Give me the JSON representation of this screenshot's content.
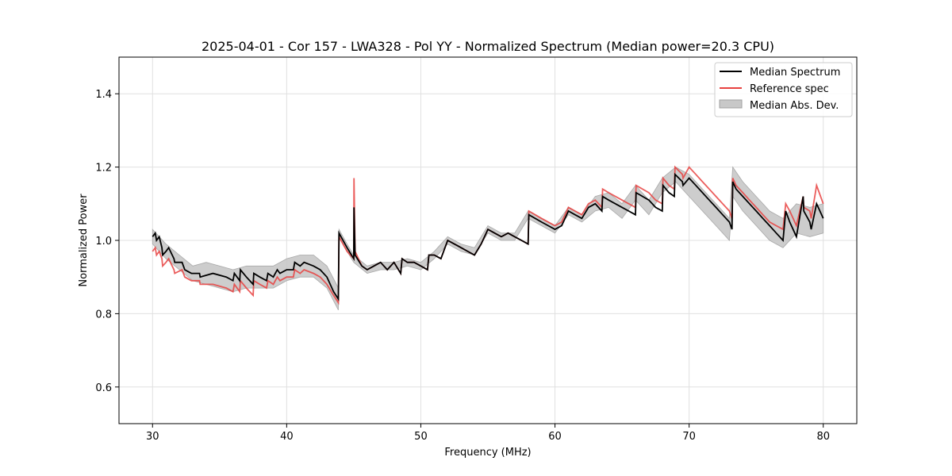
{
  "chart_data": {
    "type": "line",
    "title": "2025-04-01 - Cor 157 - LWA328 - Pol YY - Normalized Spectrum (Median power=20.3 CPU)",
    "xlabel": "Frequency (MHz)",
    "ylabel": "Normalized Power",
    "xlim": [
      27.5,
      82.5
    ],
    "ylim": [
      0.5,
      1.5
    ],
    "xticks": [
      30,
      40,
      50,
      60,
      70,
      80
    ],
    "yticks": [
      0.6,
      0.8,
      1.0,
      1.2,
      1.4
    ],
    "xtick_labels": [
      "30",
      "40",
      "50",
      "60",
      "70",
      "80"
    ],
    "ytick_labels": [
      "0.6",
      "0.8",
      "1.0",
      "1.2",
      "1.4"
    ],
    "grid": true,
    "legend_position": "top-right",
    "legend": [
      "Median Spectrum",
      "Reference spec",
      "Median Abs. Dev."
    ],
    "series": [
      {
        "name": "Median Spectrum",
        "color": "#000000",
        "x": [
          30.0,
          30.2,
          30.3,
          30.5,
          30.7,
          30.75,
          31.0,
          31.2,
          31.6,
          31.65,
          32.2,
          32.4,
          32.9,
          33.5,
          33.55,
          34.5,
          35.5,
          36.0,
          36.1,
          36.5,
          36.55,
          37.0,
          37.5,
          37.55,
          38.0,
          38.5,
          38.6,
          39.0,
          39.3,
          39.5,
          40.0,
          40.5,
          40.6,
          41.0,
          41.3,
          42.0,
          42.5,
          43.0,
          43.5,
          43.85,
          43.9,
          44.5,
          45.0,
          45.02,
          45.1,
          45.6,
          46.0,
          46.5,
          47.0,
          47.5,
          48.0,
          48.5,
          48.6,
          49.0,
          49.5,
          50.0,
          50.5,
          50.6,
          51.0,
          51.5,
          52.0,
          52.5,
          53.0,
          53.5,
          54.0,
          54.5,
          55.0,
          55.5,
          56.0,
          56.5,
          57.0,
          57.5,
          58.0,
          58.05,
          59.0,
          59.5,
          60.0,
          60.5,
          61.0,
          61.5,
          62.0,
          62.5,
          63.0,
          63.5,
          63.55,
          64.0,
          65.0,
          65.5,
          66.0,
          66.05,
          67.0,
          67.5,
          68.0,
          68.05,
          68.5,
          68.9,
          68.95,
          69.5,
          69.55,
          70.0,
          70.5,
          71.0,
          71.5,
          72.0,
          72.5,
          73.0,
          73.2,
          73.25,
          73.5,
          74.0,
          74.5,
          75.0,
          75.5,
          76.0,
          76.5,
          77.0,
          77.2,
          77.5,
          78.0,
          78.5,
          78.55,
          79.0,
          79.1,
          79.5,
          80.0
        ],
        "values": [
          1.01,
          1.02,
          1.0,
          1.01,
          0.98,
          0.96,
          0.97,
          0.98,
          0.95,
          0.94,
          0.94,
          0.92,
          0.91,
          0.91,
          0.9,
          0.91,
          0.9,
          0.89,
          0.91,
          0.89,
          0.92,
          0.9,
          0.88,
          0.91,
          0.9,
          0.89,
          0.91,
          0.9,
          0.92,
          0.91,
          0.92,
          0.92,
          0.94,
          0.93,
          0.94,
          0.93,
          0.92,
          0.9,
          0.86,
          0.84,
          1.02,
          0.98,
          0.95,
          1.09,
          0.96,
          0.93,
          0.92,
          0.93,
          0.94,
          0.92,
          0.94,
          0.91,
          0.95,
          0.94,
          0.94,
          0.93,
          0.92,
          0.96,
          0.96,
          0.95,
          1.0,
          0.99,
          0.98,
          0.97,
          0.96,
          0.99,
          1.03,
          1.02,
          1.01,
          1.02,
          1.01,
          1.0,
          0.99,
          1.07,
          1.05,
          1.04,
          1.03,
          1.04,
          1.08,
          1.07,
          1.06,
          1.09,
          1.1,
          1.08,
          1.12,
          1.11,
          1.09,
          1.08,
          1.07,
          1.13,
          1.11,
          1.09,
          1.08,
          1.15,
          1.13,
          1.12,
          1.18,
          1.16,
          1.15,
          1.17,
          1.15,
          1.13,
          1.11,
          1.09,
          1.07,
          1.05,
          1.03,
          1.16,
          1.14,
          1.12,
          1.1,
          1.08,
          1.06,
          1.04,
          1.02,
          1.0,
          1.08,
          1.05,
          1.01,
          1.12,
          1.08,
          1.05,
          1.03,
          1.1,
          1.06
        ]
      },
      {
        "name": "Reference spec",
        "color": "#e8413f",
        "x": [
          30.0,
          30.2,
          30.3,
          30.5,
          30.7,
          30.75,
          31.0,
          31.2,
          31.6,
          31.65,
          32.2,
          32.4,
          32.9,
          33.5,
          33.55,
          34.5,
          35.5,
          36.0,
          36.1,
          36.5,
          36.55,
          37.0,
          37.5,
          37.55,
          38.0,
          38.5,
          38.6,
          39.0,
          39.3,
          39.5,
          40.0,
          40.5,
          40.6,
          41.0,
          41.3,
          42.0,
          42.5,
          43.0,
          43.5,
          43.85,
          43.9,
          44.5,
          45.0,
          45.02,
          45.1,
          45.6,
          46.0,
          46.5,
          47.0,
          47.5,
          48.0,
          48.5,
          48.6,
          49.0,
          49.5,
          50.0,
          50.5,
          50.6,
          51.0,
          51.5,
          52.0,
          52.5,
          53.0,
          53.5,
          54.0,
          54.5,
          55.0,
          55.5,
          56.0,
          56.5,
          57.0,
          57.5,
          58.0,
          58.05,
          59.0,
          59.5,
          60.0,
          60.5,
          61.0,
          61.5,
          62.0,
          62.5,
          63.0,
          63.5,
          63.55,
          64.0,
          65.0,
          65.5,
          66.0,
          66.05,
          67.0,
          67.5,
          68.0,
          68.05,
          68.5,
          68.9,
          68.95,
          69.5,
          69.55,
          70.0,
          70.5,
          71.0,
          71.5,
          72.0,
          72.5,
          73.0,
          73.2,
          73.25,
          73.5,
          74.0,
          74.5,
          75.0,
          75.5,
          76.0,
          76.5,
          77.0,
          77.2,
          77.5,
          78.0,
          78.5,
          78.55,
          79.0,
          79.1,
          79.5,
          80.0
        ],
        "values": [
          0.97,
          0.98,
          0.96,
          0.97,
          0.95,
          0.93,
          0.94,
          0.95,
          0.92,
          0.91,
          0.92,
          0.9,
          0.89,
          0.89,
          0.88,
          0.88,
          0.87,
          0.86,
          0.88,
          0.86,
          0.89,
          0.87,
          0.85,
          0.89,
          0.88,
          0.87,
          0.89,
          0.88,
          0.9,
          0.89,
          0.9,
          0.9,
          0.92,
          0.91,
          0.92,
          0.91,
          0.9,
          0.88,
          0.85,
          0.83,
          1.01,
          0.97,
          0.95,
          1.17,
          0.97,
          0.93,
          0.92,
          0.93,
          0.94,
          0.92,
          0.94,
          0.91,
          0.95,
          0.94,
          0.94,
          0.93,
          0.92,
          0.96,
          0.96,
          0.95,
          1.0,
          0.99,
          0.98,
          0.97,
          0.96,
          0.99,
          1.03,
          1.02,
          1.01,
          1.02,
          1.01,
          1.0,
          0.99,
          1.08,
          1.06,
          1.05,
          1.04,
          1.05,
          1.09,
          1.08,
          1.07,
          1.1,
          1.11,
          1.09,
          1.14,
          1.13,
          1.11,
          1.1,
          1.09,
          1.15,
          1.13,
          1.11,
          1.1,
          1.17,
          1.15,
          1.14,
          1.2,
          1.18,
          1.17,
          1.2,
          1.18,
          1.16,
          1.14,
          1.12,
          1.1,
          1.08,
          1.06,
          1.17,
          1.15,
          1.13,
          1.11,
          1.09,
          1.07,
          1.05,
          1.04,
          1.03,
          1.1,
          1.08,
          1.04,
          1.12,
          1.09,
          1.08,
          1.06,
          1.15,
          1.1
        ]
      }
    ],
    "band": {
      "name": "Median Abs. Dev.",
      "color": "#b5b5b5",
      "x": [
        30.0,
        31.0,
        32.0,
        33.0,
        34.0,
        35.0,
        36.0,
        37.0,
        38.0,
        39.0,
        40.0,
        41.0,
        42.0,
        43.0,
        43.85,
        43.9,
        44.5,
        45.0,
        46.0,
        47.0,
        48.0,
        49.0,
        50.0,
        51.0,
        52.0,
        53.0,
        54.0,
        55.0,
        56.0,
        57.0,
        58.0,
        59.0,
        60.0,
        61.0,
        62.0,
        63.0,
        64.0,
        65.0,
        66.0,
        67.0,
        68.0,
        69.0,
        70.0,
        71.0,
        72.0,
        73.0,
        73.25,
        74.0,
        75.0,
        76.0,
        77.0,
        78.0,
        79.0,
        80.0
      ],
      "mid": [
        1.01,
        0.97,
        0.94,
        0.91,
        0.91,
        0.9,
        0.89,
        0.9,
        0.9,
        0.9,
        0.92,
        0.93,
        0.93,
        0.9,
        0.84,
        1.02,
        0.98,
        0.95,
        0.92,
        0.93,
        0.93,
        0.94,
        0.93,
        0.96,
        1.0,
        0.98,
        0.97,
        1.03,
        1.01,
        1.01,
        1.07,
        1.05,
        1.03,
        1.08,
        1.06,
        1.1,
        1.11,
        1.08,
        1.13,
        1.09,
        1.15,
        1.18,
        1.15,
        1.11,
        1.07,
        1.03,
        1.16,
        1.12,
        1.08,
        1.04,
        1.02,
        1.06,
        1.05,
        1.06
      ],
      "dev": [
        0.02,
        0.02,
        0.02,
        0.02,
        0.03,
        0.03,
        0.03,
        0.03,
        0.03,
        0.03,
        0.03,
        0.03,
        0.03,
        0.03,
        0.03,
        0.01,
        0.01,
        0.01,
        0.01,
        0.01,
        0.01,
        0.01,
        0.01,
        0.01,
        0.01,
        0.01,
        0.01,
        0.01,
        0.01,
        0.01,
        0.01,
        0.01,
        0.01,
        0.01,
        0.01,
        0.02,
        0.02,
        0.02,
        0.02,
        0.02,
        0.02,
        0.02,
        0.03,
        0.03,
        0.03,
        0.03,
        0.04,
        0.04,
        0.04,
        0.04,
        0.04,
        0.04,
        0.04,
        0.04
      ]
    }
  }
}
